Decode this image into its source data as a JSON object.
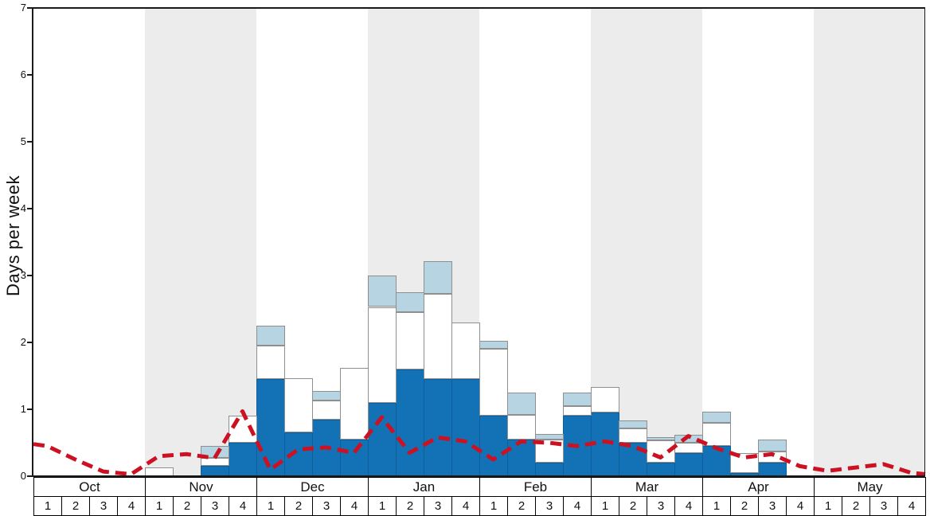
{
  "chart_data": {
    "type": "bar",
    "title": "",
    "ylabel": "Days per week",
    "ylim": [
      0,
      7
    ],
    "y_ticks": [
      0,
      1,
      2,
      3,
      4,
      5,
      6,
      7
    ],
    "grid": false,
    "legend": "none",
    "months": [
      "Oct",
      "Nov",
      "Dec",
      "Jan",
      "Feb",
      "Mar",
      "Apr",
      "May"
    ],
    "week_labels": [
      "1",
      "2",
      "3",
      "4"
    ],
    "shaded_months": [
      "Nov",
      "Jan",
      "Mar",
      "May"
    ],
    "shaded_band_color": "#ececec",
    "categories": [
      "Oct 1",
      "Oct 2",
      "Oct 3",
      "Oct 4",
      "Nov 1",
      "Nov 2",
      "Nov 3",
      "Nov 4",
      "Dec 1",
      "Dec 2",
      "Dec 3",
      "Dec 4",
      "Jan 1",
      "Jan 2",
      "Jan 3",
      "Jan 4",
      "Feb 1",
      "Feb 2",
      "Feb 3",
      "Feb 4",
      "Mar 1",
      "Mar 2",
      "Mar 3",
      "Mar 4",
      "Apr 1",
      "Apr 2",
      "Apr 3",
      "Apr 4",
      "May 1",
      "May 2",
      "May 3",
      "May 4"
    ],
    "series": [
      {
        "name": "bar-segment-dark-blue",
        "kind": "stacked-bar",
        "color": "#1272b5",
        "values": [
          0,
          0,
          0,
          0,
          0,
          0,
          0.15,
          0.5,
          1.45,
          0.65,
          0.85,
          0.55,
          1.1,
          1.6,
          1.45,
          1.45,
          0.9,
          0.55,
          0.2,
          0.9,
          0.95,
          0.5,
          0.2,
          0.35,
          0.45,
          0.05,
          0.2,
          0,
          0,
          0,
          0,
          0
        ]
      },
      {
        "name": "bar-segment-white",
        "kind": "stacked-bar",
        "color": "#ffffff",
        "values": [
          0,
          0,
          0,
          0,
          0.13,
          0,
          0.12,
          0.4,
          0.5,
          0.82,
          0.28,
          1.07,
          1.43,
          0.85,
          1.28,
          0.85,
          1.0,
          0.37,
          0.35,
          0.15,
          0.38,
          0.22,
          0.33,
          0.15,
          0.35,
          0.3,
          0.17,
          0,
          0,
          0,
          0,
          0
        ]
      },
      {
        "name": "bar-segment-light-blue",
        "kind": "stacked-bar",
        "color": "#b6d4e2",
        "values": [
          0,
          0,
          0,
          0,
          0,
          0,
          0.18,
          0,
          0.3,
          0,
          0.14,
          0,
          0.47,
          0.3,
          0.49,
          0,
          0.13,
          0.33,
          0.08,
          0.2,
          0,
          0.11,
          0.05,
          0.12,
          0.17,
          0,
          0.18,
          0,
          0,
          0,
          0,
          0
        ]
      },
      {
        "name": "red-dashed-line",
        "kind": "line",
        "dashed": true,
        "color": "#cc1122",
        "edge_start": 0.48,
        "edge_end": 0.03,
        "values": [
          0.45,
          0.25,
          0.07,
          0.03,
          0.3,
          0.33,
          0.27,
          0.97,
          0.1,
          0.4,
          0.43,
          0.35,
          0.88,
          0.35,
          0.58,
          0.52,
          0.25,
          0.52,
          0.5,
          0.45,
          0.52,
          0.45,
          0.28,
          0.6,
          0.42,
          0.28,
          0.33,
          0.15,
          0.08,
          0.13,
          0.18,
          0.05
        ]
      }
    ]
  }
}
